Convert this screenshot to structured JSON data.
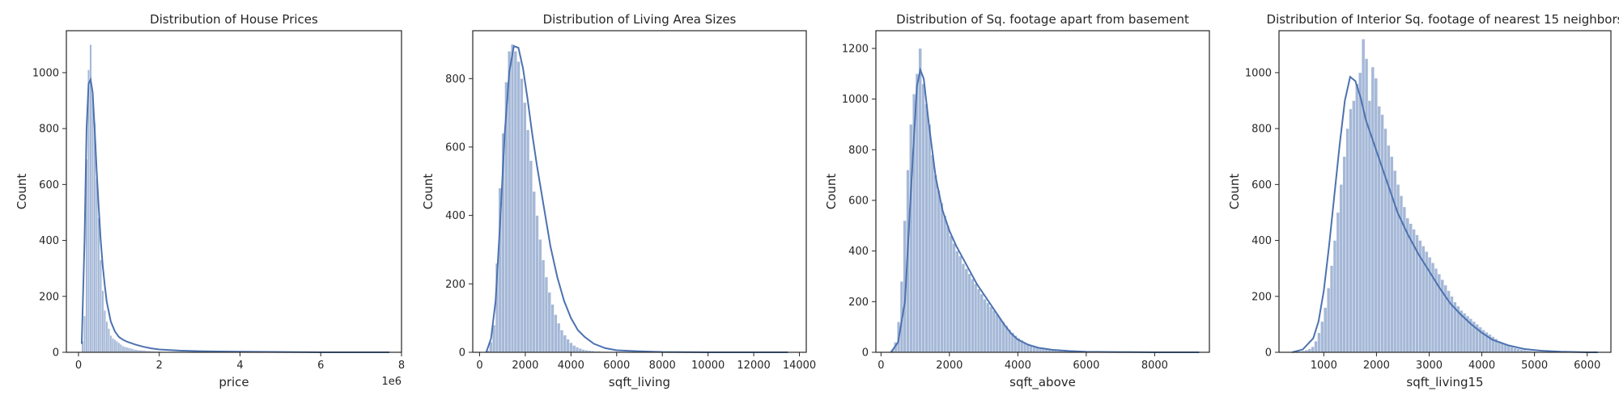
{
  "chart_data": [
    {
      "type": "histogram",
      "title": "Distribution of House Prices",
      "xlabel": "price",
      "ylabel": "Count",
      "offset_label": "1e6",
      "xlim": [
        -0.3,
        8.0
      ],
      "ylim": [
        0,
        1150
      ],
      "xticks": [
        0,
        2,
        4,
        6,
        8
      ],
      "yticks": [
        0,
        200,
        400,
        600,
        800,
        1000
      ],
      "bin_start": 0.075,
      "bin_width": 0.05,
      "counts": [
        40,
        130,
        690,
        1010,
        1100,
        930,
        820,
        620,
        480,
        330,
        220,
        150,
        110,
        85,
        60,
        50,
        45,
        40,
        34,
        28,
        22,
        20,
        18,
        16,
        14,
        12,
        10,
        9,
        8,
        8,
        7,
        6,
        5,
        5,
        4,
        4,
        3,
        3,
        3,
        2,
        2,
        2,
        2,
        2,
        1,
        1,
        1,
        1,
        1,
        1
      ],
      "kde": {
        "x": [
          0.08,
          0.15,
          0.2,
          0.25,
          0.3,
          0.35,
          0.4,
          0.45,
          0.5,
          0.55,
          0.6,
          0.65,
          0.7,
          0.8,
          0.9,
          1.0,
          1.1,
          1.2,
          1.4,
          1.6,
          1.8,
          2.0,
          2.5,
          3.0,
          3.5,
          4.0,
          5.0,
          6.0,
          7.7
        ],
        "y": [
          30,
          400,
          800,
          960,
          975,
          930,
          800,
          650,
          520,
          400,
          310,
          240,
          180,
          110,
          75,
          55,
          45,
          38,
          28,
          20,
          14,
          10,
          6,
          4,
          3,
          2,
          1,
          0,
          0
        ]
      }
    },
    {
      "type": "histogram",
      "title": "Distribution of Living Area Sizes",
      "xlabel": "sqft_living",
      "ylabel": "Count",
      "xlim": [
        -300,
        14300
      ],
      "ylim": [
        0,
        940
      ],
      "xticks": [
        0,
        2000,
        4000,
        6000,
        8000,
        10000,
        12000,
        14000
      ],
      "yticks": [
        0,
        200,
        400,
        600,
        800
      ],
      "bin_start": 290,
      "bin_width": 135,
      "counts": [
        5,
        30,
        80,
        260,
        480,
        640,
        790,
        880,
        900,
        880,
        850,
        800,
        730,
        650,
        560,
        470,
        400,
        330,
        270,
        220,
        175,
        140,
        110,
        85,
        65,
        50,
        38,
        28,
        20,
        15,
        11,
        8,
        6,
        5,
        4,
        3,
        3,
        2,
        2,
        1,
        1,
        1,
        1,
        1
      ],
      "kde": {
        "x": [
          290,
          500,
          700,
          900,
          1100,
          1300,
          1500,
          1700,
          1900,
          2100,
          2300,
          2500,
          2800,
          3100,
          3400,
          3700,
          4000,
          4300,
          4600,
          5000,
          5500,
          6000,
          7000,
          8000,
          10000,
          13500
        ],
        "y": [
          0,
          40,
          150,
          380,
          640,
          820,
          895,
          890,
          830,
          740,
          640,
          550,
          430,
          310,
          220,
          150,
          100,
          65,
          45,
          25,
          12,
          6,
          3,
          1,
          0,
          0
        ]
      }
    },
    {
      "type": "histogram",
      "title": "Distribution of Sq. footage apart from basement",
      "xlabel": "sqft_above",
      "ylabel": "Count",
      "xlim": [
        -150,
        9600
      ],
      "ylim": [
        0,
        1270
      ],
      "xticks": [
        0,
        2000,
        4000,
        6000,
        8000
      ],
      "yticks": [
        0,
        200,
        400,
        600,
        800,
        1000,
        1200
      ],
      "bin_start": 290,
      "bin_width": 90,
      "counts": [
        10,
        40,
        120,
        280,
        520,
        720,
        900,
        1020,
        1100,
        1200,
        1060,
        980,
        900,
        780,
        700,
        640,
        590,
        540,
        500,
        460,
        430,
        400,
        380,
        350,
        330,
        310,
        290,
        270,
        250,
        230,
        210,
        195,
        180,
        165,
        150,
        135,
        120,
        105,
        90,
        78,
        66,
        56,
        48,
        40,
        34,
        28,
        24,
        20,
        17,
        14,
        12,
        10,
        8,
        7,
        6,
        5,
        4,
        4,
        3,
        3,
        2,
        2,
        2,
        2,
        1,
        1,
        1,
        1
      ],
      "kde": {
        "x": [
          290,
          500,
          700,
          900,
          1050,
          1150,
          1250,
          1400,
          1600,
          1800,
          2000,
          2200,
          2400,
          2600,
          2800,
          3000,
          3200,
          3400,
          3600,
          3800,
          4000,
          4300,
          4600,
          5000,
          5500,
          6000,
          7000,
          8000,
          9300
        ],
        "y": [
          0,
          40,
          200,
          700,
          1050,
          1115,
          1080,
          900,
          690,
          560,
          480,
          420,
          370,
          320,
          270,
          230,
          190,
          150,
          110,
          75,
          50,
          30,
          18,
          10,
          5,
          2,
          1,
          0,
          0
        ]
      }
    },
    {
      "type": "histogram",
      "title": "Distribution of Interior Sq. footage of nearest 15 neighbors",
      "xlabel": "sqft_living15",
      "ylabel": "Count",
      "xlim": [
        150,
        6450
      ],
      "ylim": [
        0,
        1150
      ],
      "xticks": [
        1000,
        2000,
        3000,
        4000,
        5000,
        6000
      ],
      "yticks": [
        0,
        200,
        400,
        600,
        800,
        1000
      ],
      "bin_start": 400,
      "bin_width": 60,
      "counts": [
        1,
        2,
        3,
        5,
        8,
        12,
        20,
        40,
        70,
        110,
        160,
        230,
        310,
        400,
        500,
        600,
        700,
        800,
        870,
        900,
        960,
        1000,
        1120,
        1050,
        900,
        1020,
        980,
        880,
        850,
        800,
        740,
        700,
        650,
        600,
        560,
        520,
        480,
        460,
        440,
        420,
        400,
        380,
        360,
        340,
        320,
        300,
        280,
        260,
        240,
        220,
        200,
        180,
        165,
        150,
        140,
        130,
        120,
        110,
        100,
        90,
        80,
        72,
        64,
        56,
        48,
        40,
        34,
        28,
        24,
        20,
        16,
        13,
        10,
        8,
        6,
        5,
        4,
        3,
        2,
        2,
        1,
        1,
        1,
        1,
        1,
        1,
        1,
        1,
        1,
        1,
        1,
        1,
        1
      ],
      "kde": {
        "x": [
          400,
          600,
          800,
          900,
          1000,
          1100,
          1200,
          1300,
          1400,
          1500,
          1600,
          1700,
          1800,
          2000,
          2200,
          2400,
          2600,
          2800,
          3000,
          3200,
          3400,
          3600,
          3800,
          4000,
          4200,
          4500,
          4800,
          5100,
          5500,
          6000,
          6200
        ],
        "y": [
          0,
          10,
          50,
          110,
          220,
          380,
          560,
          740,
          900,
          985,
          970,
          910,
          830,
          720,
          610,
          500,
          420,
          350,
          290,
          230,
          175,
          135,
          100,
          70,
          45,
          25,
          12,
          6,
          2,
          0,
          0
        ]
      }
    }
  ]
}
